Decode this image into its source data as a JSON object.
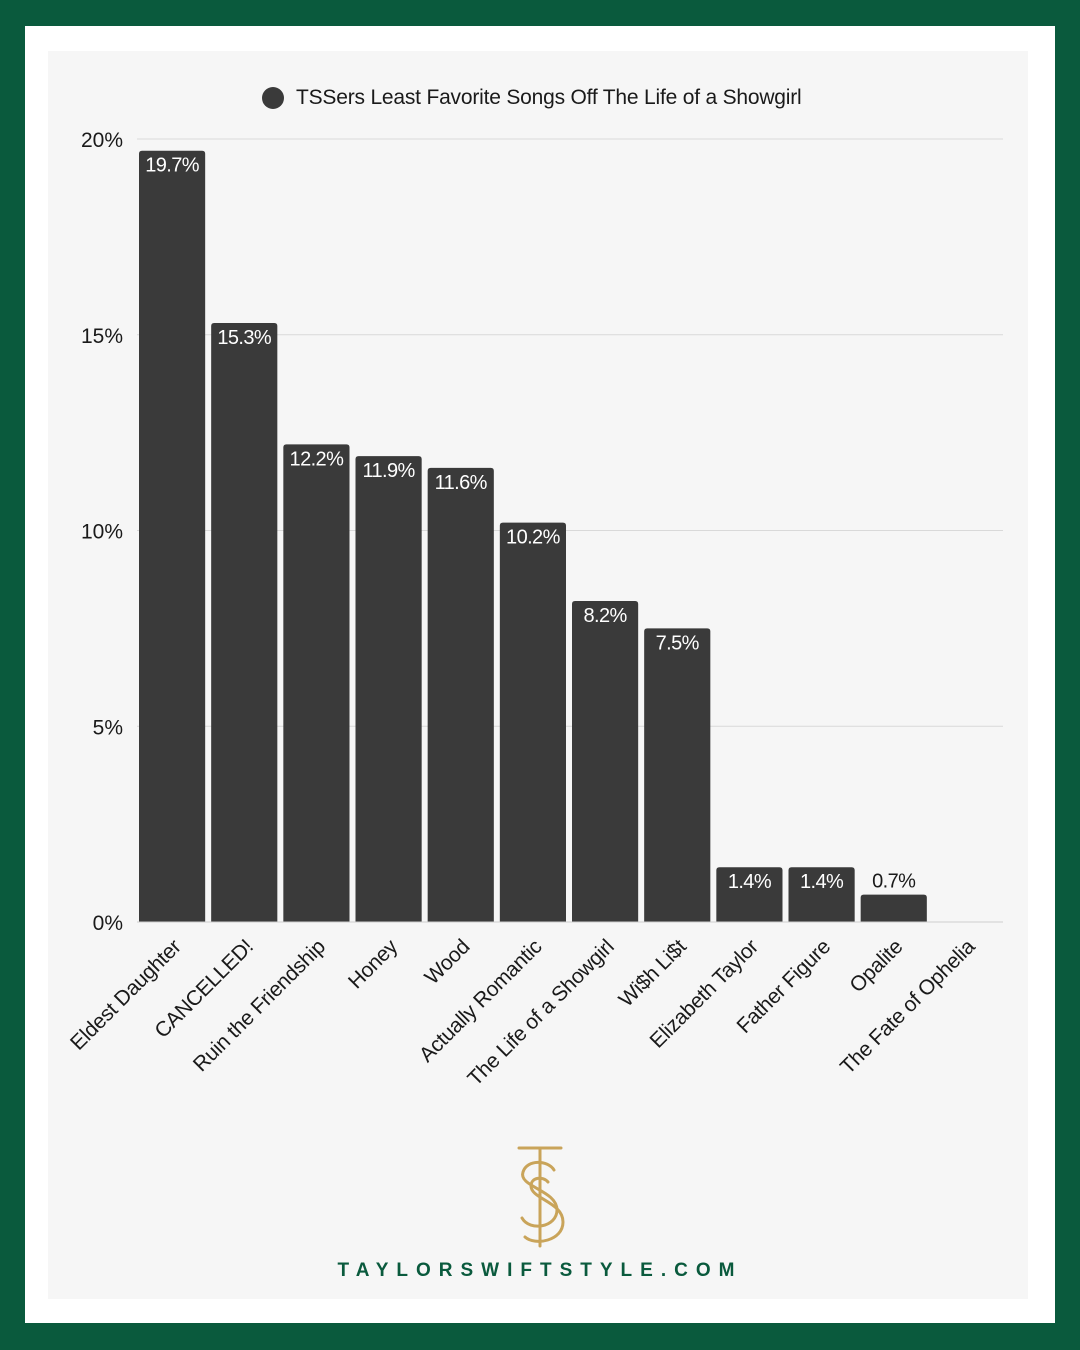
{
  "colors": {
    "background": "#0a5a3d",
    "bar": "#3a3a3a",
    "panel": "#f6f6f6",
    "grid": "#d9d9d9",
    "logo_gold": "#c9a45a"
  },
  "logo": {
    "icon": "ts-monogram-icon",
    "text": "TS"
  },
  "footer": {
    "url": "TAYLORSWIFTSTYLE.COM"
  },
  "chart_data": {
    "type": "bar",
    "title": "",
    "legend": {
      "label": "TSSers Least Favorite Songs Off The Life of a Showgirl",
      "position": "top-center"
    },
    "categories": [
      "Eldest Daughter",
      "CANCELLED!",
      "Ruin the Friendship",
      "Honey",
      "Wood",
      "Actually Romantic",
      "The Life of a Showgirl",
      "Wi$h Li$t",
      "Elizabeth Taylor",
      "Father Figure",
      "Opalite",
      "The Fate of Ophelia"
    ],
    "values": [
      19.7,
      15.3,
      12.2,
      11.9,
      11.6,
      10.2,
      8.2,
      7.5,
      1.4,
      1.4,
      0.7,
      0
    ],
    "value_labels": [
      "19.7%",
      "15.3%",
      "12.2%",
      "11.9%",
      "11.6%",
      "10.2%",
      "8.2%",
      "7.5%",
      "1.4%",
      "1.4%",
      "0.7%",
      ""
    ],
    "y_ticks": [
      0,
      5,
      10,
      15,
      20
    ],
    "y_tick_labels": [
      "0%",
      "5%",
      "10%",
      "15%",
      "20%"
    ],
    "ylim": [
      0,
      20
    ],
    "xlabel": "",
    "ylabel": "",
    "grid": true
  }
}
